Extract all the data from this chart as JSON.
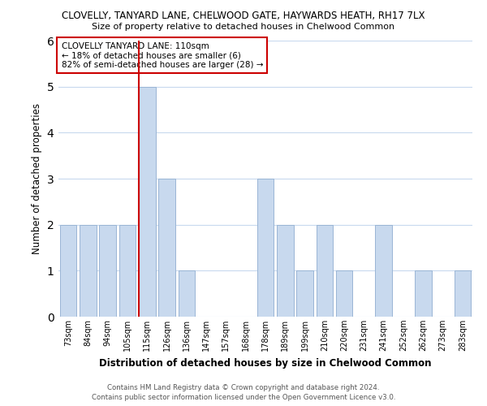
{
  "title1": "CLOVELLY, TANYARD LANE, CHELWOOD GATE, HAYWARDS HEATH, RH17 7LX",
  "title2": "Size of property relative to detached houses in Chelwood Common",
  "xlabel": "Distribution of detached houses by size in Chelwood Common",
  "ylabel": "Number of detached properties",
  "bar_labels": [
    "73sqm",
    "84sqm",
    "94sqm",
    "105sqm",
    "115sqm",
    "126sqm",
    "136sqm",
    "147sqm",
    "157sqm",
    "168sqm",
    "178sqm",
    "189sqm",
    "199sqm",
    "210sqm",
    "220sqm",
    "231sqm",
    "241sqm",
    "252sqm",
    "262sqm",
    "273sqm",
    "283sqm"
  ],
  "bar_values": [
    2,
    2,
    2,
    2,
    5,
    3,
    1,
    0,
    0,
    0,
    3,
    2,
    1,
    2,
    1,
    0,
    2,
    0,
    1,
    0,
    1
  ],
  "bar_color": "#c8d9ee",
  "bar_edge_color": "#9ab5d5",
  "highlight_index": 4,
  "highlight_line_color": "#cc0000",
  "ylim": [
    0,
    6
  ],
  "yticks": [
    0,
    1,
    2,
    3,
    4,
    5,
    6
  ],
  "annotation_title": "CLOVELLY TANYARD LANE: 110sqm",
  "annotation_line1": "← 18% of detached houses are smaller (6)",
  "annotation_line2": "82% of semi-detached houses are larger (28) →",
  "annotation_box_color": "#ffffff",
  "annotation_box_edge": "#cc0000",
  "footer1": "Contains HM Land Registry data © Crown copyright and database right 2024.",
  "footer2": "Contains public sector information licensed under the Open Government Licence v3.0.",
  "background_color": "#ffffff",
  "grid_color": "#c8d9ee"
}
